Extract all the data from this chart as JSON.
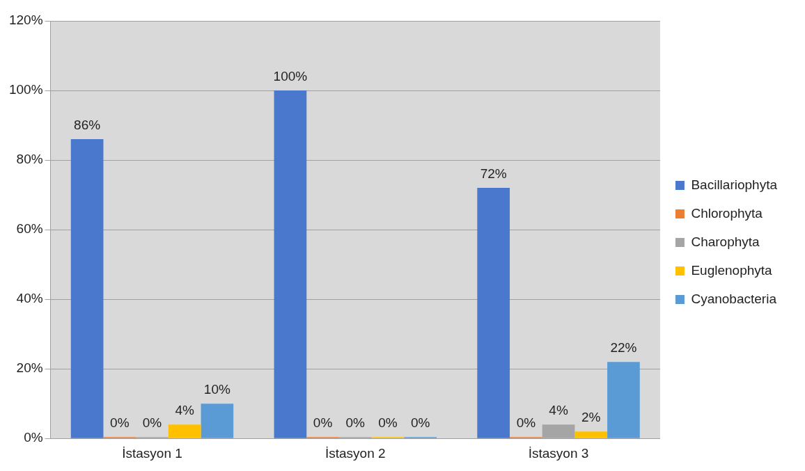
{
  "chart_data": {
    "type": "bar",
    "categories": [
      "İstasyon 1",
      "İstasyon 2",
      "İstasyon 3"
    ],
    "series": [
      {
        "name": "Bacillariophyta",
        "color": "#4a78cc",
        "values": [
          86,
          100,
          72
        ],
        "value_labels": [
          "86%",
          "100%",
          "72%"
        ]
      },
      {
        "name": "Chlorophyta",
        "color": "#ed7d31",
        "values": [
          0,
          0,
          0
        ],
        "value_labels": [
          "0%",
          "0%",
          "0%"
        ]
      },
      {
        "name": "Charophyta",
        "color": "#a5a5a5",
        "values": [
          0,
          0,
          4
        ],
        "value_labels": [
          "0%",
          "0%",
          "4%"
        ]
      },
      {
        "name": "Euglenophyta",
        "color": "#ffc000",
        "values": [
          4,
          0,
          2
        ],
        "value_labels": [
          "4%",
          "0%",
          "2%"
        ]
      },
      {
        "name": "Cyanobacteria",
        "color": "#5b9bd5",
        "values": [
          10,
          0,
          22
        ],
        "value_labels": [
          "10%",
          "0%",
          "22%"
        ]
      }
    ],
    "ylim": [
      0,
      120
    ],
    "yticks": [
      {
        "value": 0,
        "label": "0%"
      },
      {
        "value": 20,
        "label": "20%"
      },
      {
        "value": 40,
        "label": "40%"
      },
      {
        "value": 60,
        "label": "60%"
      },
      {
        "value": 80,
        "label": "80%"
      },
      {
        "value": 100,
        "label": "100%"
      },
      {
        "value": 120,
        "label": "120%"
      }
    ],
    "grid": "y",
    "legend": "right"
  }
}
